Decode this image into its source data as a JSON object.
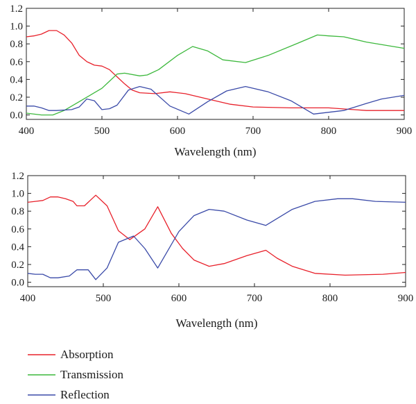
{
  "colors": {
    "absorption": "#e8202a",
    "transmission": "#3cb83c",
    "reflection": "#3a4aa8",
    "axis": "#222222"
  },
  "legend": {
    "items": [
      {
        "label": "Absorption",
        "color": "#e8202a"
      },
      {
        "label": "Transmission",
        "color": "#3cb83c"
      },
      {
        "label": "Reflection",
        "color": "#3a4aa8"
      }
    ]
  },
  "chart_data": [
    {
      "type": "line",
      "title": "",
      "xlabel": "Wavelength (nm)",
      "ylabel": "",
      "xlim": [
        400,
        900
      ],
      "ylim": [
        -0.05,
        1.2
      ],
      "xticks": [
        "400",
        "500",
        "600",
        "700",
        "800",
        "900"
      ],
      "yticks": [
        "0.0",
        "0.2",
        "0.4",
        "0.6",
        "0.8",
        "1.0",
        "1.2"
      ],
      "grid": false,
      "series": [
        {
          "key": "absorption",
          "name": "Absorption",
          "color": "#e8202a",
          "points": [
            [
              400,
              0.88
            ],
            [
              410,
              0.89
            ],
            [
              420,
              0.91
            ],
            [
              430,
              0.95
            ],
            [
              440,
              0.95
            ],
            [
              450,
              0.9
            ],
            [
              460,
              0.81
            ],
            [
              470,
              0.67
            ],
            [
              480,
              0.6
            ],
            [
              490,
              0.56
            ],
            [
              500,
              0.55
            ],
            [
              510,
              0.51
            ],
            [
              520,
              0.43
            ],
            [
              530,
              0.35
            ],
            [
              540,
              0.28
            ],
            [
              550,
              0.25
            ],
            [
              570,
              0.24
            ],
            [
              590,
              0.26
            ],
            [
              610,
              0.24
            ],
            [
              640,
              0.18
            ],
            [
              670,
              0.12
            ],
            [
              700,
              0.09
            ],
            [
              750,
              0.08
            ],
            [
              800,
              0.08
            ],
            [
              850,
              0.05
            ],
            [
              900,
              0.05
            ]
          ]
        },
        {
          "key": "transmission",
          "name": "Transmission",
          "color": "#3cb83c",
          "points": [
            [
              400,
              0.02
            ],
            [
              420,
              0.0
            ],
            [
              435,
              0.0
            ],
            [
              450,
              0.05
            ],
            [
              470,
              0.15
            ],
            [
              490,
              0.25
            ],
            [
              500,
              0.3
            ],
            [
              510,
              0.38
            ],
            [
              520,
              0.46
            ],
            [
              530,
              0.47
            ],
            [
              550,
              0.44
            ],
            [
              560,
              0.45
            ],
            [
              575,
              0.51
            ],
            [
              600,
              0.67
            ],
            [
              620,
              0.77
            ],
            [
              640,
              0.72
            ],
            [
              660,
              0.62
            ],
            [
              690,
              0.59
            ],
            [
              720,
              0.67
            ],
            [
              760,
              0.81
            ],
            [
              785,
              0.9
            ],
            [
              800,
              0.89
            ],
            [
              820,
              0.88
            ],
            [
              850,
              0.82
            ],
            [
              900,
              0.75
            ]
          ]
        },
        {
          "key": "reflection",
          "name": "Reflection",
          "color": "#3a4aa8",
          "points": [
            [
              400,
              0.1
            ],
            [
              410,
              0.1
            ],
            [
              420,
              0.08
            ],
            [
              430,
              0.05
            ],
            [
              440,
              0.05
            ],
            [
              460,
              0.06
            ],
            [
              470,
              0.09
            ],
            [
              480,
              0.18
            ],
            [
              490,
              0.16
            ],
            [
              500,
              0.06
            ],
            [
              510,
              0.07
            ],
            [
              520,
              0.11
            ],
            [
              535,
              0.28
            ],
            [
              550,
              0.32
            ],
            [
              565,
              0.29
            ],
            [
              590,
              0.1
            ],
            [
              615,
              0.01
            ],
            [
              640,
              0.15
            ],
            [
              665,
              0.27
            ],
            [
              690,
              0.32
            ],
            [
              720,
              0.26
            ],
            [
              750,
              0.16
            ],
            [
              780,
              0.01
            ],
            [
              820,
              0.05
            ],
            [
              850,
              0.13
            ],
            [
              870,
              0.18
            ],
            [
              900,
              0.22
            ]
          ]
        }
      ]
    },
    {
      "type": "line",
      "title": "",
      "xlabel": "Wavelength (nm)",
      "ylabel": "",
      "xlim": [
        400,
        900
      ],
      "ylim": [
        -0.05,
        1.2
      ],
      "xticks": [
        "400",
        "500",
        "600",
        "700",
        "800",
        "900"
      ],
      "yticks": [
        "0.0",
        "0.2",
        "0.4",
        "0.6",
        "0.8",
        "1.0",
        "1.2"
      ],
      "grid": false,
      "series": [
        {
          "key": "absorption",
          "name": "Absorption",
          "color": "#e8202a",
          "points": [
            [
              400,
              0.9
            ],
            [
              410,
              0.91
            ],
            [
              420,
              0.92
            ],
            [
              430,
              0.96
            ],
            [
              440,
              0.96
            ],
            [
              450,
              0.94
            ],
            [
              460,
              0.91
            ],
            [
              465,
              0.86
            ],
            [
              475,
              0.86
            ],
            [
              490,
              0.98
            ],
            [
              505,
              0.86
            ],
            [
              520,
              0.58
            ],
            [
              535,
              0.48
            ],
            [
              555,
              0.6
            ],
            [
              572,
              0.85
            ],
            [
              590,
              0.55
            ],
            [
              605,
              0.38
            ],
            [
              620,
              0.25
            ],
            [
              640,
              0.18
            ],
            [
              660,
              0.21
            ],
            [
              690,
              0.3
            ],
            [
              715,
              0.36
            ],
            [
              730,
              0.27
            ],
            [
              750,
              0.18
            ],
            [
              780,
              0.1
            ],
            [
              820,
              0.08
            ],
            [
              870,
              0.09
            ],
            [
              900,
              0.11
            ]
          ]
        },
        {
          "key": "reflection",
          "name": "Reflection",
          "color": "#3a4aa8",
          "points": [
            [
              400,
              0.1
            ],
            [
              410,
              0.09
            ],
            [
              420,
              0.09
            ],
            [
              430,
              0.05
            ],
            [
              440,
              0.05
            ],
            [
              455,
              0.07
            ],
            [
              465,
              0.14
            ],
            [
              480,
              0.14
            ],
            [
              490,
              0.03
            ],
            [
              505,
              0.16
            ],
            [
              520,
              0.45
            ],
            [
              540,
              0.52
            ],
            [
              555,
              0.38
            ],
            [
              572,
              0.16
            ],
            [
              600,
              0.57
            ],
            [
              620,
              0.75
            ],
            [
              640,
              0.82
            ],
            [
              660,
              0.8
            ],
            [
              690,
              0.7
            ],
            [
              715,
              0.64
            ],
            [
              750,
              0.82
            ],
            [
              780,
              0.91
            ],
            [
              810,
              0.94
            ],
            [
              830,
              0.94
            ],
            [
              860,
              0.91
            ],
            [
              900,
              0.9
            ]
          ]
        }
      ]
    }
  ]
}
